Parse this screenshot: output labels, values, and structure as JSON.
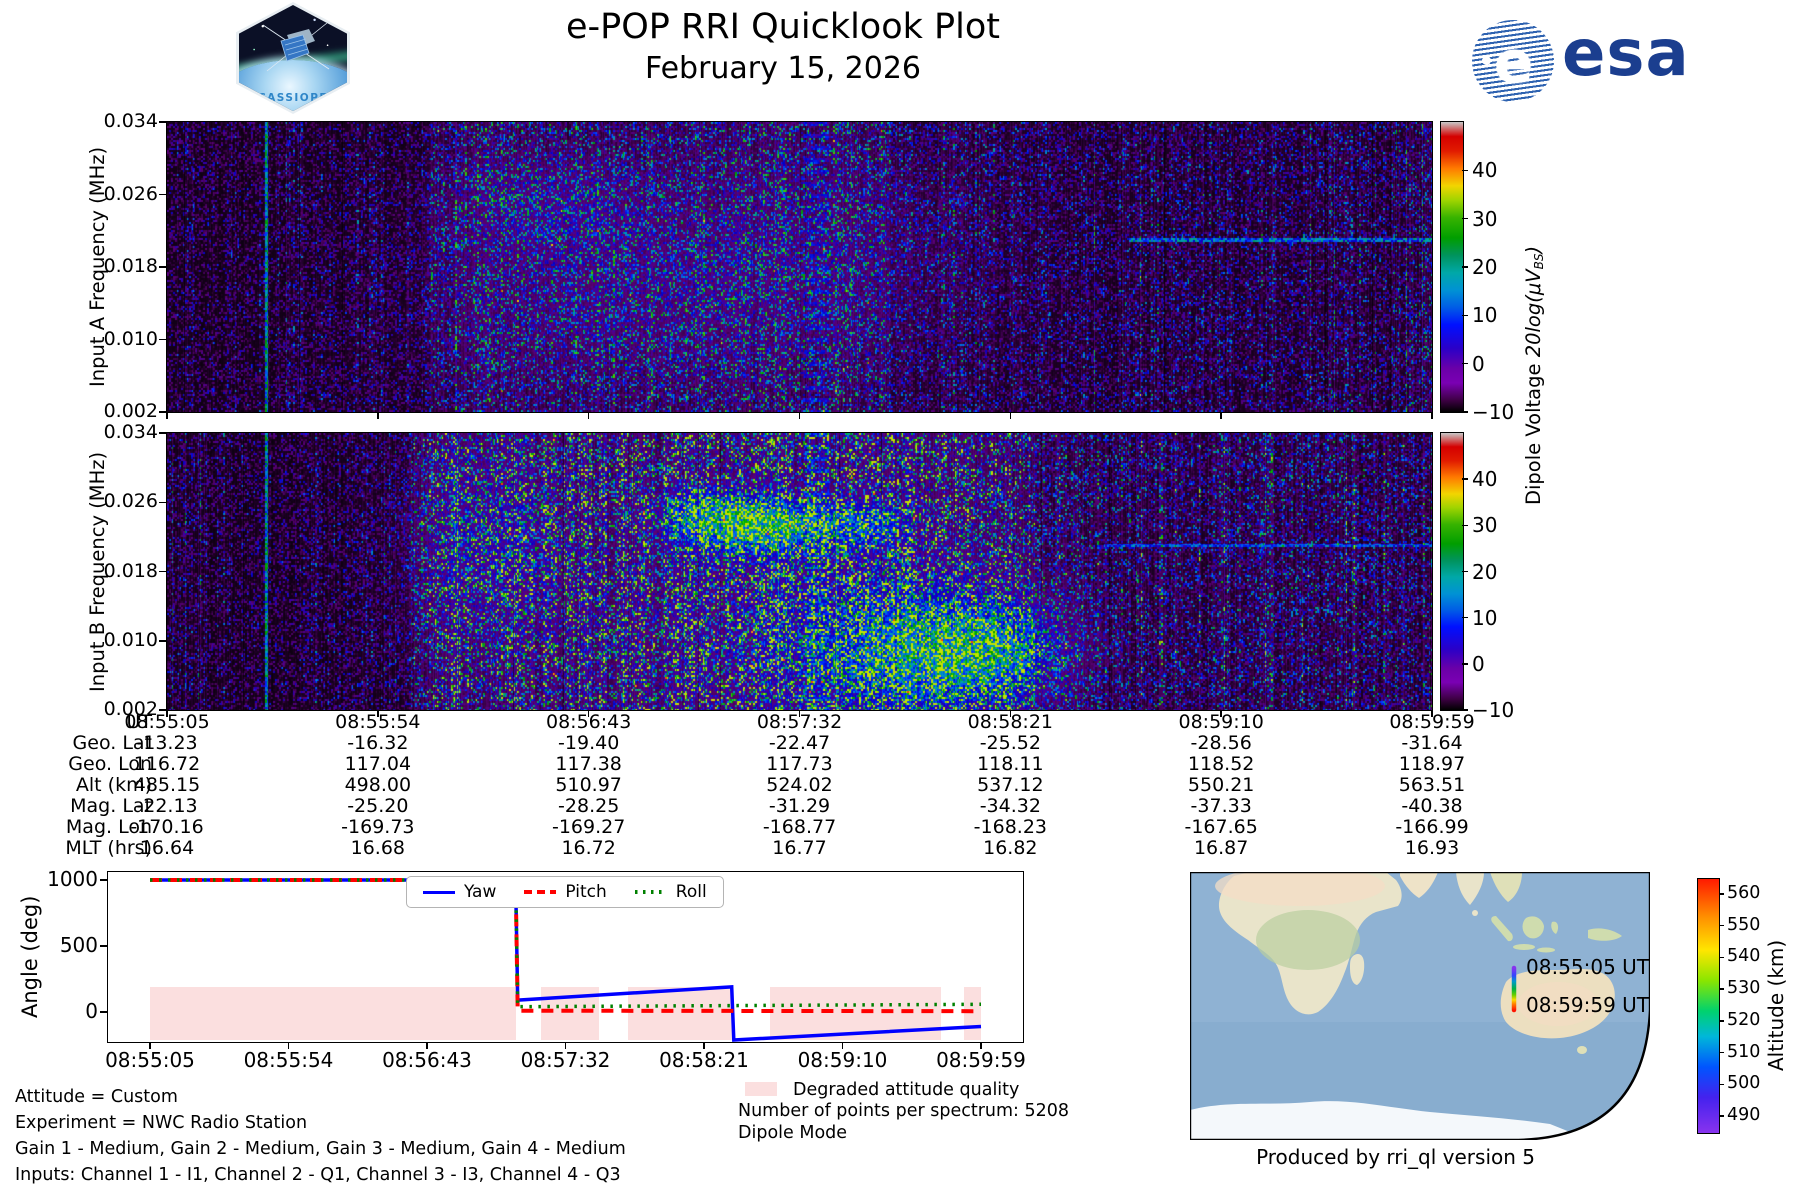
{
  "header": {
    "title": "e-POP RRI Quicklook Plot",
    "date": "February 15, 2026"
  },
  "logos": {
    "cassiope_label": "CASSIOPE",
    "esa_text": "esa"
  },
  "colors": {
    "yaw_blue": "#0000ff",
    "pitch_red": "#ff0000",
    "roll_green": "#008000",
    "degraded_pink": "#fbdfdf",
    "esa_navy": "#1b3e8f"
  },
  "spectrograms": {
    "panel_a": {
      "ylabel": "Input A Frequency (MHz)",
      "yticks": [
        "0.034",
        "0.026",
        "0.018",
        "0.010",
        "0.002"
      ]
    },
    "panel_b": {
      "ylabel": "Input B Frequency (MHz)",
      "yticks": [
        "0.034",
        "0.026",
        "0.018",
        "0.010",
        "0.002"
      ]
    },
    "colorbar_ticks": [
      "40",
      "30",
      "20",
      "10",
      "0",
      "−10"
    ],
    "colorbar_label_prefix": "Dipole Voltage ",
    "colorbar_label_math": "20log(μV",
    "colorbar_label_sub": "BS",
    "colorbar_label_close": ")"
  },
  "table": {
    "rows": [
      {
        "label": "UT",
        "values": [
          "08:55:05",
          "08:55:54",
          "08:56:43",
          "08:57:32",
          "08:58:21",
          "08:59:10",
          "08:59:59"
        ]
      },
      {
        "label": "Geo. Lat",
        "values": [
          "-13.23",
          "-16.32",
          "-19.40",
          "-22.47",
          "-25.52",
          "-28.56",
          "-31.64"
        ]
      },
      {
        "label": "Geo. Lon",
        "values": [
          "116.72",
          "117.04",
          "117.38",
          "117.73",
          "118.11",
          "118.52",
          "118.97"
        ]
      },
      {
        "label": "Alt (km)",
        "values": [
          "485.15",
          "498.00",
          "510.97",
          "524.02",
          "537.12",
          "550.21",
          "563.51"
        ]
      },
      {
        "label": "Mag. Lat",
        "values": [
          "-22.13",
          "-25.20",
          "-28.25",
          "-31.29",
          "-34.32",
          "-37.33",
          "-40.38"
        ]
      },
      {
        "label": "Mag. Lon",
        "values": [
          "-170.16",
          "-169.73",
          "-169.27",
          "-168.77",
          "-168.23",
          "-167.65",
          "-166.99"
        ]
      },
      {
        "label": "MLT (hrs)",
        "values": [
          "16.64",
          "16.68",
          "16.72",
          "16.77",
          "16.82",
          "16.87",
          "16.93"
        ]
      }
    ]
  },
  "attitude": {
    "ylabel": "Angle (deg)",
    "yticks": [
      "1000",
      "500",
      "0"
    ],
    "xticks": [
      "08:55:05",
      "08:55:54",
      "08:56:43",
      "08:57:32",
      "08:58:21",
      "08:59:10",
      "08:59:59"
    ],
    "legend": [
      "Yaw",
      "Pitch",
      "Roll"
    ]
  },
  "map": {
    "track_labels": [
      "08:55:05 UT",
      "08:59:59 UT"
    ],
    "colorbar_label": "Altitude (km)",
    "colorbar_ticks": [
      "560",
      "550",
      "540",
      "530",
      "520",
      "510",
      "500",
      "490"
    ]
  },
  "footer": {
    "left_lines": [
      "Attitude = Custom",
      "Experiment = NWC Radio Station",
      "Gain 1 - Medium, Gain 2 - Medium, Gain 3 - Medium, Gain 4 - Medium",
      "Inputs: Channel 1 - I1, Channel 2 - Q1, Channel 3 - I3, Channel 4 - Q3"
    ],
    "degraded_label": "Degraded attitude quality",
    "points_line": "Number of points per spectrum: 5208",
    "mode_line": "Dipole Mode",
    "produced_by": "Produced by rri_ql version 5"
  },
  "chart_data": [
    {
      "id": "input_a_spectrogram",
      "type": "heatmap",
      "ylabel": "Input A Frequency (MHz)",
      "xlabel": "UT",
      "y_ticks_mhz": [
        0.034,
        0.026,
        0.018,
        0.01,
        0.002
      ],
      "y_range_mhz": [
        0.002,
        0.034
      ],
      "x_range_ut": [
        "08:55:05",
        "08:59:59"
      ],
      "colorbar": {
        "label": "Dipole Voltage 20log(μV_BS)",
        "ticks": [
          40,
          30,
          20,
          10,
          0,
          -10
        ],
        "value_range": [
          -10,
          50
        ],
        "colormap": "nipy_spectral"
      },
      "summary": "Mostly dark background noise; faint blue broadband emission ~08:56-08:58; narrowband horizontal line near 0.021 MHz after ~08:58:50; bright green narrow vertical line near 08:55:28.",
      "render": {
        "seed": 11,
        "base_exp": 4.5,
        "vmax": 0.62,
        "col_env": [
          [
            0,
            0.3
          ],
          [
            0.2,
            0.3
          ],
          [
            0.215,
            0.6
          ],
          [
            0.28,
            0.55
          ],
          [
            0.36,
            0.58
          ],
          [
            0.44,
            0.6
          ],
          [
            0.5,
            0.68
          ],
          [
            0.56,
            0.6
          ],
          [
            0.578,
            0.42
          ],
          [
            0.65,
            0.38
          ],
          [
            0.72,
            0.36
          ],
          [
            0.8,
            0.4
          ],
          [
            0.9,
            0.42
          ],
          [
            1,
            0.44
          ]
        ],
        "blobs": [
          {
            "x": 0.3,
            "y": 0.28,
            "rx": 0.05,
            "ry": 0.12,
            "amp": 0.1
          },
          {
            "x": 0.34,
            "y": 0.6,
            "rx": 0.09,
            "ry": 0.22,
            "amp": 0.08
          },
          {
            "x": 0.5,
            "y": 0.45,
            "rx": 0.1,
            "ry": 0.28,
            "amp": 0.07
          }
        ],
        "hline": {
          "y": 0.405,
          "x0": 0.76,
          "x1": 1.0,
          "amp": 0.34
        },
        "vline": {
          "x": 0.078,
          "amp": 0.5
        },
        "banded": {
          "x0": 0.503,
          "x1": 0.523,
          "amp": 0.22
        }
      }
    },
    {
      "id": "input_b_spectrogram",
      "type": "heatmap",
      "ylabel": "Input B Frequency (MHz)",
      "xlabel": "UT",
      "y_ticks_mhz": [
        0.034,
        0.026,
        0.018,
        0.01,
        0.002
      ],
      "y_range_mhz": [
        0.002,
        0.034
      ],
      "x_range_ut": [
        "08:55:05",
        "08:59:59"
      ],
      "colorbar": {
        "label": "Dipole Voltage 20log(μV_BS)",
        "ticks": [
          40,
          30,
          20,
          10,
          0,
          -10
        ],
        "value_range": [
          -10,
          50
        ],
        "colormap": "nipy_spectral"
      },
      "summary": "Strong broadband blue/teal emission ~08:56-08:58:30 with bright green patches near 0.022-0.026 MHz and near 0.008 MHz; weaker structured emission and narrowband line near 0.021 MHz afterwards.",
      "render": {
        "seed": 77,
        "base_exp": 4.5,
        "vmax": 0.7,
        "col_env": [
          [
            0,
            0.3
          ],
          [
            0.18,
            0.32
          ],
          [
            0.2,
            0.55
          ],
          [
            0.23,
            0.88
          ],
          [
            0.3,
            0.82
          ],
          [
            0.36,
            0.9
          ],
          [
            0.42,
            0.98
          ],
          [
            0.47,
            1.02
          ],
          [
            0.52,
            1.06
          ],
          [
            0.58,
            1.04
          ],
          [
            0.63,
            0.96
          ],
          [
            0.66,
            0.82
          ],
          [
            0.7,
            0.62
          ],
          [
            0.74,
            0.5
          ],
          [
            0.8,
            0.52
          ],
          [
            0.88,
            0.52
          ],
          [
            0.95,
            0.5
          ],
          [
            1,
            0.52
          ]
        ],
        "blobs": [
          {
            "x": 0.255,
            "y": 0.4,
            "rx": 0.04,
            "ry": 0.24,
            "amp": 0.14
          },
          {
            "x": 0.425,
            "y": 0.3,
            "rx": 0.025,
            "ry": 0.06,
            "amp": 0.3
          },
          {
            "x": 0.46,
            "y": 0.33,
            "rx": 0.03,
            "ry": 0.07,
            "amp": 0.34
          },
          {
            "x": 0.5,
            "y": 0.335,
            "rx": 0.035,
            "ry": 0.06,
            "amp": 0.28
          },
          {
            "x": 0.555,
            "y": 0.33,
            "rx": 0.02,
            "ry": 0.05,
            "amp": 0.24
          },
          {
            "x": 0.52,
            "y": 0.68,
            "rx": 0.1,
            "ry": 0.24,
            "amp": 0.1
          },
          {
            "x": 0.6,
            "y": 0.8,
            "rx": 0.055,
            "ry": 0.14,
            "amp": 0.38
          },
          {
            "x": 0.655,
            "y": 0.78,
            "rx": 0.035,
            "ry": 0.11,
            "amp": 0.28
          }
        ],
        "hline": {
          "y": 0.405,
          "x0": 0.74,
          "x1": 1.0,
          "amp": 0.3
        },
        "vline": {
          "x": 0.078,
          "amp": 0.5
        },
        "banded": {
          "x0": 0.503,
          "x1": 0.523,
          "amp": 0.3
        }
      }
    },
    {
      "id": "ephemeris_table",
      "type": "table",
      "row_labels": [
        "UT",
        "Geo. Lat",
        "Geo. Lon",
        "Alt (km)",
        "Mag. Lat",
        "Mag. Lon",
        "MLT (hrs)"
      ],
      "columns": [
        [
          "08:55:05",
          "-13.23",
          "116.72",
          "485.15",
          "-22.13",
          "-170.16",
          "16.64"
        ],
        [
          "08:55:54",
          "-16.32",
          "117.04",
          "498.00",
          "-25.20",
          "-169.73",
          "16.68"
        ],
        [
          "08:56:43",
          "-19.40",
          "117.38",
          "510.97",
          "-28.25",
          "-169.27",
          "16.72"
        ],
        [
          "08:57:32",
          "-22.47",
          "117.73",
          "524.02",
          "-31.29",
          "-168.77",
          "16.77"
        ],
        [
          "08:58:21",
          "-25.52",
          "118.11",
          "537.12",
          "-34.32",
          "-168.23",
          "16.82"
        ],
        [
          "08:59:10",
          "-28.56",
          "118.52",
          "550.21",
          "-37.33",
          "-167.65",
          "16.87"
        ],
        [
          "08:59:59",
          "-31.64",
          "118.97",
          "563.51",
          "-40.38",
          "-166.99",
          "16.93"
        ]
      ]
    },
    {
      "id": "attitude_angles",
      "type": "line",
      "ylabel": "Angle (deg)",
      "x_ticks": [
        "08:55:05",
        "08:55:54",
        "08:56:43",
        "08:57:32",
        "08:58:21",
        "08:59:10",
        "08:59:59"
      ],
      "y_ticks": [
        1000,
        500,
        0
      ],
      "ylim": [
        -230,
        1060
      ],
      "x_axis_note": "point x values are fractions of the 08:55:05 to 08:59:59 span",
      "series": [
        {
          "name": "Yaw",
          "color": "#0000ff",
          "style": "solid",
          "points": [
            [
              0,
              1000
            ],
            [
              0.44,
              1000
            ],
            [
              0.4425,
              90
            ],
            [
              0.7,
              190
            ],
            [
              0.7025,
              -212
            ],
            [
              1,
              -110
            ]
          ]
        },
        {
          "name": "Pitch",
          "color": "#ff0000",
          "style": "dashed",
          "points": [
            [
              0,
              1000
            ],
            [
              0.44,
              1000
            ],
            [
              0.4425,
              10
            ],
            [
              1,
              6
            ]
          ]
        },
        {
          "name": "Roll",
          "color": "#008000",
          "style": "dotted",
          "points": [
            [
              0,
              1000
            ],
            [
              0.44,
              1000
            ],
            [
              0.4425,
              40
            ],
            [
              1,
              58
            ]
          ]
        }
      ],
      "degraded_intervals": [
        [
          0,
          0.44
        ],
        [
          0.47,
          0.54
        ],
        [
          0.575,
          0.7
        ],
        [
          0.746,
          0.952
        ],
        [
          0.98,
          1
        ]
      ],
      "degraded_band_deg": [
        -212,
        190
      ],
      "legend_position": "top-center"
    },
    {
      "id": "ground_track_map",
      "type": "map",
      "region": "Africa, Indian Ocean, southern Asia, Australia, Antarctica",
      "track": {
        "start_label": "08:55:05 UT",
        "end_label": "08:59:59 UT",
        "location": "over Western Australia, moving south",
        "altitude_km_range": [
          485.15,
          563.51
        ]
      },
      "colorbar": {
        "label": "Altitude (km)",
        "ticks": [
          560,
          550,
          540,
          530,
          520,
          510,
          500,
          490
        ],
        "range": [
          485,
          565
        ],
        "colormap": "rainbow"
      }
    }
  ]
}
